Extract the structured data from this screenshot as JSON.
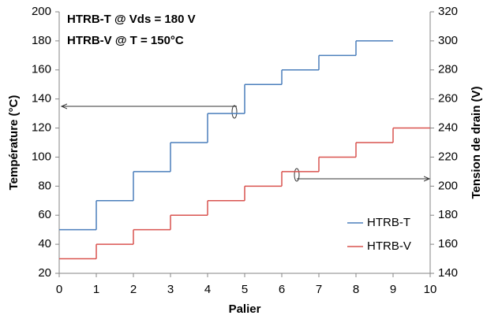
{
  "chart_data": {
    "type": "line",
    "step": "post",
    "annotations": [
      {
        "text": "HTRB-T @ Vds = 180 V",
        "color": "#2e86c8"
      },
      {
        "text": "HTRB-V @ T = 150°C",
        "color": "#c0282d"
      }
    ],
    "xlabel": "Palier",
    "ylabel": "Température (°C)",
    "y2label": "Tension de drain (V)",
    "xlim": [
      0,
      10
    ],
    "xticks": [
      0,
      1,
      2,
      3,
      4,
      5,
      6,
      7,
      8,
      9,
      10
    ],
    "ylim": [
      20,
      200
    ],
    "yticks": [
      20,
      40,
      60,
      80,
      100,
      120,
      140,
      160,
      180,
      200
    ],
    "y2lim": [
      140,
      320
    ],
    "y2ticks": [
      140,
      160,
      180,
      200,
      220,
      240,
      260,
      280,
      300,
      320
    ],
    "legend": "lower right",
    "series": [
      {
        "name": "HTRB-T",
        "color": "#4a7ebb",
        "x": [
          0,
          1,
          2,
          3,
          4,
          5,
          6,
          7,
          8,
          9
        ],
        "values": [
          50,
          70,
          90,
          110,
          130,
          150,
          160,
          170,
          180,
          180
        ]
      },
      {
        "name": "HTRB-V",
        "color": "#d9534f",
        "axis": "y2",
        "x": [
          0,
          1,
          2,
          3,
          4,
          5,
          6,
          7,
          8,
          9,
          10
        ],
        "values": [
          150,
          160,
          170,
          180,
          190,
          200,
          210,
          220,
          230,
          240,
          240
        ]
      }
    ]
  }
}
